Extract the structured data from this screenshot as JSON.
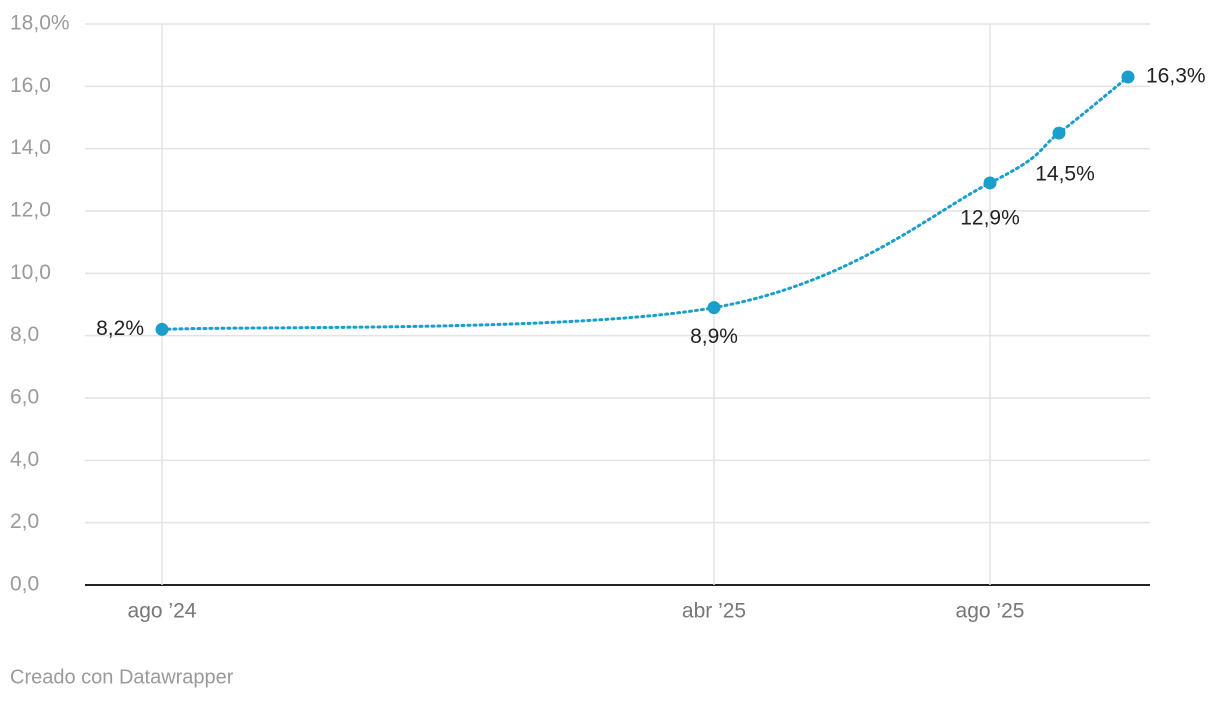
{
  "chart_data": {
    "type": "line",
    "x": [
      "2024-08",
      "2025-04",
      "2025-08",
      "2025-09",
      "2025-10"
    ],
    "series": [
      {
        "color": "#1a9fca",
        "values": [
          8.2,
          8.9,
          12.9,
          14.5,
          16.3
        ],
        "value_labels": [
          "8,2%",
          "8,9%",
          "12,9%",
          "14,5%",
          "16,3%"
        ]
      }
    ],
    "xlim": [
      "2024-08",
      "2025-10"
    ],
    "xticks": [
      {
        "value": "2024-08",
        "label": "ago ’24"
      },
      {
        "value": "2025-04",
        "label": "abr ’25"
      },
      {
        "value": "2025-08",
        "label": "ago ’25"
      }
    ],
    "ylim": [
      0,
      18
    ],
    "yticks": [
      {
        "value": 0,
        "label": "0,0"
      },
      {
        "value": 2,
        "label": "2,0"
      },
      {
        "value": 4,
        "label": "4,0"
      },
      {
        "value": 6,
        "label": "6,0"
      },
      {
        "value": 8,
        "label": "8,0"
      },
      {
        "value": 10,
        "label": "10,0"
      },
      {
        "value": 12,
        "label": "12,0"
      },
      {
        "value": 14,
        "label": "14,0"
      },
      {
        "value": 16,
        "label": "16,0"
      },
      {
        "value": 18,
        "label": "18,0%"
      }
    ],
    "grid": true,
    "footer": "Creado con Datawrapper"
  }
}
